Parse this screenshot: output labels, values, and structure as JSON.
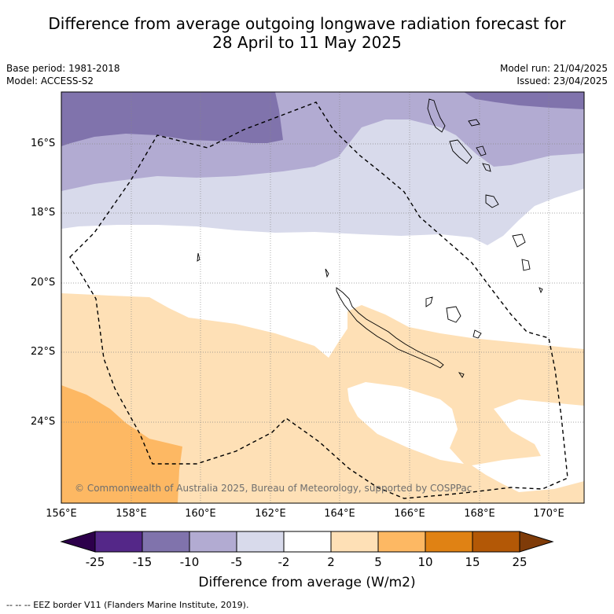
{
  "title_line1": "Difference from average outgoing longwave radiation forecast for",
  "title_line2": "28 April to 11 May 2025",
  "meta_left": [
    "Base period: 1981-2018",
    "Model: ACCESS-S2"
  ],
  "meta_right": [
    "Model run: 21/04/2025",
    "Issued: 23/04/2025"
  ],
  "lat_labels": [
    "16°S",
    "18°S",
    "20°S",
    "22°S",
    "24°S"
  ],
  "lon_labels": [
    "156°E",
    "158°E",
    "160°E",
    "162°E",
    "164°E",
    "166°E",
    "168°E",
    "170°E"
  ],
  "copyright": "© Commonwealth of Australia 2025, Bureau of Meteorology, supported by COSPPac",
  "colorbar": {
    "title": "Difference from average (W/m2)",
    "labels": [
      "-25",
      "-15",
      "-10",
      "-5",
      "-2",
      "2",
      "5",
      "10",
      "15",
      "25"
    ],
    "colors": [
      "#2d004b",
      "#542788",
      "#8073ac",
      "#b2abd2",
      "#d8daeb",
      "#ffffff",
      "#fee0b6",
      "#fdb863",
      "#e08214",
      "#b35806",
      "#7f3b08"
    ]
  },
  "footer": "--  --  -- EEZ border V11 (Flanders Marine Institute, 2019)."
}
